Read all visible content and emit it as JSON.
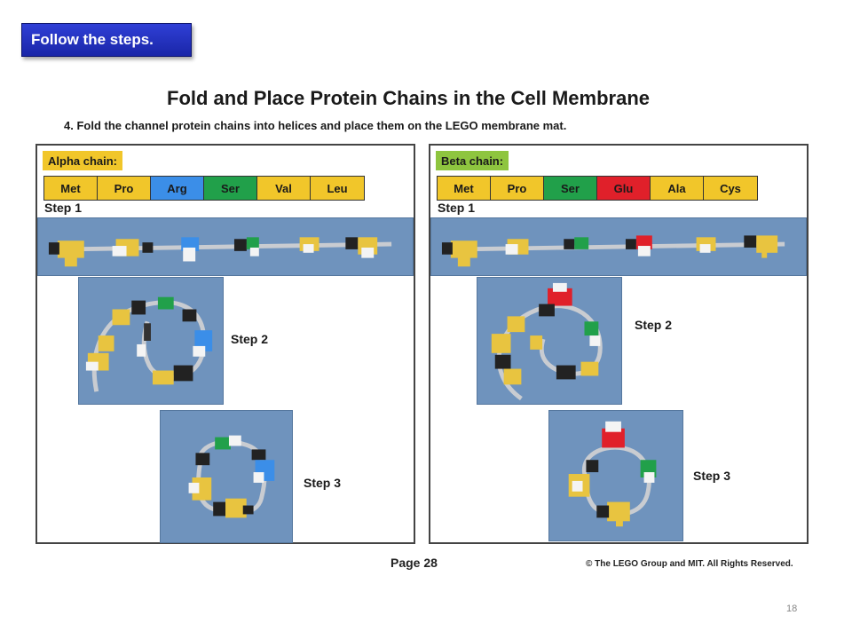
{
  "badge": "Follow the steps.",
  "title": "Fold and Place Protein Chains in the Cell Membrane",
  "instruction": "4. Fold the channel protein chains into helices and place them on the LEGO membrane mat.",
  "alpha": {
    "label": "Alpha chain:",
    "residues": [
      {
        "name": "Met",
        "color": "#f1c62a"
      },
      {
        "name": "Pro",
        "color": "#f1c62a"
      },
      {
        "name": "Arg",
        "color": "#3b8ee8"
      },
      {
        "name": "Ser",
        "color": "#21a04a"
      },
      {
        "name": "Val",
        "color": "#f1c62a"
      },
      {
        "name": "Leu",
        "color": "#f1c62a"
      }
    ],
    "step1": "Step 1",
    "step2": "Step 2",
    "step3": "Step 3"
  },
  "beta": {
    "label": "Beta chain:",
    "residues": [
      {
        "name": "Met",
        "color": "#f1c62a"
      },
      {
        "name": "Pro",
        "color": "#f1c62a"
      },
      {
        "name": "Ser",
        "color": "#21a04a"
      },
      {
        "name": "Glu",
        "color": "#e0202a"
      },
      {
        "name": "Ala",
        "color": "#f1c62a"
      },
      {
        "name": "Cys",
        "color": "#f1c62a"
      }
    ],
    "step1": "Step 1",
    "step2": "Step 2",
    "step3": "Step 3"
  },
  "page": "Page 28",
  "copyright": "© The LEGO Group and MIT.  All Rights Reserved.",
  "slide_number": "18"
}
